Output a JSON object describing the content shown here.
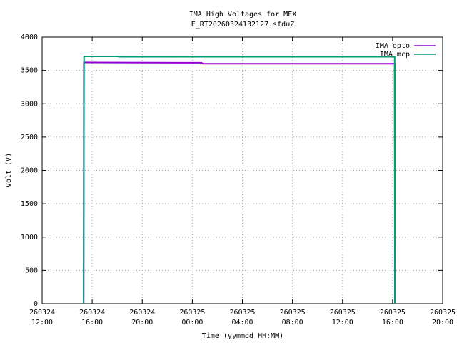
{
  "chart_data": {
    "type": "line",
    "title": "IMA High Voltages for MEX",
    "subtitle": "E_RT20260324132127.sfduZ",
    "x_label": "Time (yymmdd HH:MM)",
    "y_label": "Volt (V)",
    "xlim": [
      "260324 12:00",
      "260325 20:00"
    ],
    "xticks": [
      "260324 12:00",
      "260324 16:00",
      "260324 20:00",
      "260325 00:00",
      "260325 04:00",
      "260325 08:00",
      "260325 12:00",
      "260325 16:00",
      "260325 20:00"
    ],
    "ylim": [
      0,
      4000
    ],
    "yticks": [
      0,
      500,
      1000,
      1500,
      2000,
      2500,
      3000,
      3500,
      4000
    ],
    "grid": true,
    "legend": "top-right",
    "series": [
      {
        "name": "IMA opto",
        "color": "#9400d3",
        "x": [
          "260324 15:19",
          "260324 15:20",
          "260325 00:45",
          "260325 00:50",
          "260325 16:10",
          "260325 16:11"
        ],
        "values": [
          0,
          3620,
          3615,
          3600,
          3600,
          0
        ]
      },
      {
        "name": "IMA mcp",
        "color": "#009e73",
        "x": [
          "260324 15:19",
          "260324 15:21",
          "260324 18:00",
          "260324 18:10",
          "260325 16:10",
          "260325 16:11"
        ],
        "values": [
          0,
          3710,
          3710,
          3705,
          3705,
          0
        ]
      }
    ]
  }
}
